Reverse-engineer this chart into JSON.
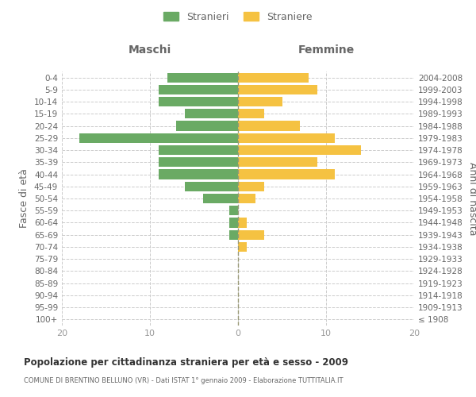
{
  "age_groups": [
    "100+",
    "95-99",
    "90-94",
    "85-89",
    "80-84",
    "75-79",
    "70-74",
    "65-69",
    "60-64",
    "55-59",
    "50-54",
    "45-49",
    "40-44",
    "35-39",
    "30-34",
    "25-29",
    "20-24",
    "15-19",
    "10-14",
    "5-9",
    "0-4"
  ],
  "birth_years": [
    "≤ 1908",
    "1909-1913",
    "1914-1918",
    "1919-1923",
    "1924-1928",
    "1929-1933",
    "1934-1938",
    "1939-1943",
    "1944-1948",
    "1949-1953",
    "1954-1958",
    "1959-1963",
    "1964-1968",
    "1969-1973",
    "1974-1978",
    "1979-1983",
    "1984-1988",
    "1989-1993",
    "1994-1998",
    "1999-2003",
    "2004-2008"
  ],
  "males": [
    0,
    0,
    0,
    0,
    0,
    0,
    0,
    1,
    1,
    1,
    4,
    6,
    9,
    9,
    9,
    18,
    7,
    6,
    9,
    9,
    8
  ],
  "females": [
    0,
    0,
    0,
    0,
    0,
    0,
    1,
    3,
    1,
    0,
    2,
    3,
    11,
    9,
    14,
    11,
    7,
    3,
    5,
    9,
    8
  ],
  "male_color": "#6aaa64",
  "female_color": "#f5c242",
  "background_color": "#ffffff",
  "grid_color": "#cccccc",
  "title": "Popolazione per cittadinanza straniera per età e sesso - 2009",
  "subtitle": "COMUNE DI BRENTINO BELLUNO (VR) - Dati ISTAT 1° gennaio 2009 - Elaborazione TUTTITALIA.IT",
  "ylabel_left": "Fasce di età",
  "ylabel_right": "Anni di nascita",
  "header_left": "Maschi",
  "header_right": "Femmine",
  "legend_male": "Stranieri",
  "legend_female": "Straniere",
  "xlim": 20,
  "tick_color": "#999999",
  "label_color": "#666666",
  "bar_height": 0.8
}
